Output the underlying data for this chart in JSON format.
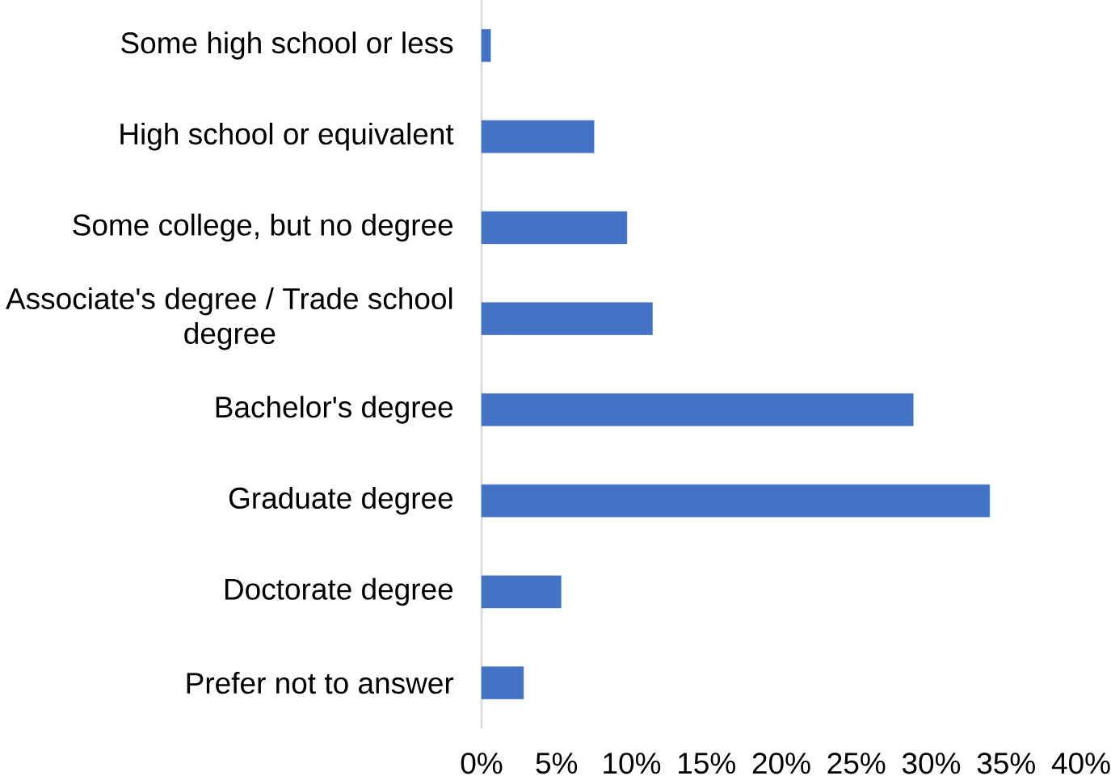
{
  "chart_data": {
    "type": "bar",
    "orientation": "horizontal",
    "categories": [
      "Some high school or less",
      "High school or equivalent",
      "Some college, but no degree",
      "Associate's degree / Trade school degree",
      "Bachelor's degree",
      "Graduate degree",
      "Doctorate degree",
      "Prefer not to answer"
    ],
    "values": [
      0.6,
      7.5,
      9.7,
      11.4,
      28.8,
      33.9,
      5.3,
      2.8
    ],
    "color": "#4472c4",
    "xlim": [
      0,
      40
    ],
    "xticks": [
      {
        "value": 0,
        "label": "0%"
      },
      {
        "value": 5,
        "label": "5%"
      },
      {
        "value": 10,
        "label": "10%"
      },
      {
        "value": 15,
        "label": "15%"
      },
      {
        "value": 20,
        "label": "20%"
      },
      {
        "value": 25,
        "label": "25%"
      },
      {
        "value": 30,
        "label": "30%"
      },
      {
        "value": 35,
        "label": "35%"
      },
      {
        "value": 40,
        "label": "40%"
      }
    ]
  }
}
